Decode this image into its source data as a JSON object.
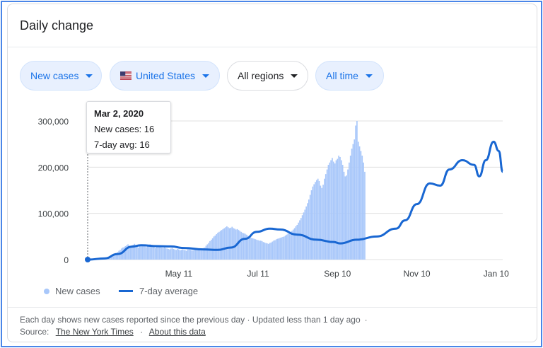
{
  "card": {
    "title": "Daily change"
  },
  "filters": {
    "metric": "New cases",
    "country": "United States",
    "region": "All regions",
    "period": "All time"
  },
  "tooltip": {
    "date": "Mar 2, 2020",
    "new_cases": "New cases: 16",
    "avg": "7-day avg: 16"
  },
  "legend": {
    "bars": "New cases",
    "line": "7-day average"
  },
  "footer": {
    "note": "Each day shows new cases reported since the previous day · Updated less than 1 day ago",
    "source_label": "Source:",
    "source_link": "The New York Times",
    "about_link": "About this data"
  },
  "colors": {
    "bar": "#a8c7fa",
    "line": "#1967d2",
    "chip_bg": "#e8f0fe",
    "chip_text": "#1a73e8"
  },
  "chart_data": {
    "type": "bar",
    "title": "",
    "y_ticks": [
      "0",
      "100,000",
      "200,000",
      "300,000"
    ],
    "ylim": [
      0,
      300000
    ],
    "x_ticks": [
      "May 11",
      "Jul 11",
      "Sep 10",
      "Nov 10",
      "Jan 10"
    ],
    "x_range": [
      "2020-03-02",
      "2021-01-15"
    ],
    "series": [
      {
        "name": "7-day average",
        "type": "line",
        "points": [
          [
            "2020-03-02",
            16
          ],
          [
            "2020-03-15",
            2500
          ],
          [
            "2020-03-25",
            12000
          ],
          [
            "2020-04-05",
            28000
          ],
          [
            "2020-04-12",
            31000
          ],
          [
            "2020-04-25",
            29000
          ],
          [
            "2020-05-05",
            28500
          ],
          [
            "2020-05-15",
            25000
          ],
          [
            "2020-05-30",
            22000
          ],
          [
            "2020-06-10",
            21000
          ],
          [
            "2020-06-20",
            26000
          ],
          [
            "2020-07-01",
            45000
          ],
          [
            "2020-07-10",
            60000
          ],
          [
            "2020-07-20",
            67000
          ],
          [
            "2020-07-28",
            65000
          ],
          [
            "2020-08-10",
            54000
          ],
          [
            "2020-08-25",
            43000
          ],
          [
            "2020-09-07",
            38000
          ],
          [
            "2020-09-12",
            35000
          ],
          [
            "2020-09-25",
            43000
          ],
          [
            "2020-10-10",
            50000
          ],
          [
            "2020-10-25",
            67000
          ],
          [
            "2020-11-01",
            85000
          ],
          [
            "2020-11-10",
            120000
          ],
          [
            "2020-11-20",
            165000
          ],
          [
            "2020-11-28",
            160000
          ],
          [
            "2020-12-05",
            195000
          ],
          [
            "2020-12-15",
            215000
          ],
          [
            "2020-12-24",
            205000
          ],
          [
            "2020-12-28",
            180000
          ],
          [
            "2021-01-02",
            215000
          ],
          [
            "2021-01-08",
            255000
          ],
          [
            "2021-01-12",
            235000
          ],
          [
            "2021-01-15",
            190000
          ]
        ]
      }
    ],
    "bars": {
      "name": "New cases",
      "start": "2020-03-02",
      "values": [
        16,
        20,
        25,
        40,
        60,
        80,
        100,
        160,
        250,
        400,
        550,
        700,
        900,
        1300,
        1800,
        2500,
        3600,
        4700,
        6000,
        8000,
        9500,
        11000,
        13000,
        16000,
        19000,
        21000,
        24000,
        26000,
        27000,
        29000,
        31000,
        33000,
        30000,
        29000,
        31000,
        32000,
        34000,
        31000,
        28000,
        26000,
        30000,
        31000,
        33000,
        32000,
        29000,
        27000,
        30000,
        32000,
        33000,
        30000,
        29000,
        27000,
        25000,
        28000,
        30000,
        29000,
        28000,
        26000,
        25000,
        27000,
        25000,
        24000,
        23000,
        22000,
        24000,
        25000,
        23000,
        22000,
        21000,
        23000,
        22000,
        20000,
        21000,
        22000,
        21000,
        20000,
        19000,
        22000,
        22000,
        21000,
        20000,
        20000,
        21000,
        22000,
        24000,
        24000,
        23000,
        21000,
        24000,
        25000,
        26000,
        30000,
        33000,
        36000,
        40000,
        43000,
        46000,
        50000,
        52000,
        55000,
        58000,
        60000,
        62000,
        64000,
        66000,
        68000,
        70000,
        72000,
        70000,
        68000,
        69000,
        71000,
        68000,
        67000,
        65000,
        66000,
        64000,
        62000,
        60000,
        58000,
        57000,
        56000,
        54000,
        52000,
        50000,
        48000,
        47000,
        46000,
        45000,
        44000,
        43000,
        42000,
        41000,
        41000,
        40000,
        38000,
        37000,
        36000,
        35000,
        34000,
        36000,
        37000,
        39000,
        41000,
        42000,
        44000,
        45000,
        46000,
        47000,
        48000,
        49000,
        50000,
        52000,
        54000,
        56000,
        58000,
        60000,
        62000,
        65000,
        68000,
        72000,
        75000,
        80000,
        85000,
        90000,
        96000,
        102000,
        108000,
        115000,
        122000,
        130000,
        140000,
        150000,
        158000,
        163000,
        168000,
        172000,
        175000,
        170000,
        160000,
        155000,
        162000,
        175000,
        185000,
        195000,
        205000,
        210000,
        215000,
        220000,
        212000,
        208000,
        215000,
        218000,
        225000,
        222000,
        215000,
        205000,
        190000,
        180000,
        182000,
        195000,
        210000,
        225000,
        240000,
        250000,
        260000,
        290000,
        300000,
        255000,
        245000,
        235000,
        225000,
        210000,
        190000
      ]
    }
  }
}
